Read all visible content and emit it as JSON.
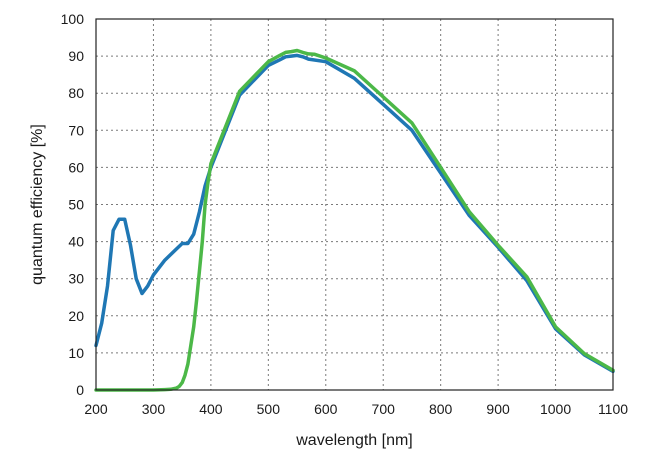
{
  "chart_data": {
    "type": "line",
    "title": "",
    "xlabel": "wavelength [nm]",
    "ylabel": "quantum efficiency [%]",
    "xlim": [
      200,
      1100
    ],
    "ylim": [
      0,
      100
    ],
    "grid": true,
    "x_ticks": [
      200,
      300,
      400,
      500,
      600,
      700,
      800,
      900,
      1000,
      1100
    ],
    "y_ticks": [
      0,
      10,
      20,
      30,
      40,
      50,
      60,
      70,
      80,
      90,
      100
    ],
    "series": [
      {
        "name": "blue",
        "color": "#1f77b4",
        "x": [
          200,
          210,
          220,
          230,
          240,
          250,
          260,
          270,
          280,
          290,
          300,
          320,
          340,
          350,
          360,
          370,
          380,
          390,
          400,
          450,
          500,
          520,
          530,
          540,
          550,
          560,
          570,
          600,
          650,
          700,
          750,
          800,
          850,
          900,
          950,
          1000,
          1050,
          1100
        ],
        "y": [
          12,
          18,
          28,
          43,
          46,
          46,
          39,
          30,
          26,
          28,
          31,
          35,
          38,
          39.5,
          39.5,
          42,
          48,
          55,
          60,
          79.5,
          87.5,
          89,
          89.8,
          90,
          90.2,
          89.8,
          89.2,
          88.5,
          84,
          77,
          70,
          58.5,
          47,
          38.5,
          29.5,
          16.5,
          9.5,
          5
        ]
      },
      {
        "name": "green",
        "color": "#4cb848",
        "x": [
          200,
          300,
          320,
          330,
          340,
          345,
          350,
          355,
          360,
          365,
          370,
          375,
          380,
          385,
          390,
          395,
          400,
          450,
          500,
          520,
          530,
          540,
          550,
          560,
          570,
          580,
          600,
          650,
          700,
          750,
          800,
          850,
          900,
          950,
          1000,
          1050,
          1100
        ],
        "y": [
          0,
          0,
          0.1,
          0.2,
          0.5,
          1,
          2,
          4,
          7,
          12,
          17,
          24,
          32,
          40,
          50,
          56,
          61,
          80.5,
          88.5,
          90.2,
          91,
          91.2,
          91.5,
          91,
          90.6,
          90.5,
          89.5,
          86,
          79,
          72,
          60,
          48,
          39,
          30.5,
          17,
          9.8,
          5.3
        ]
      }
    ]
  }
}
